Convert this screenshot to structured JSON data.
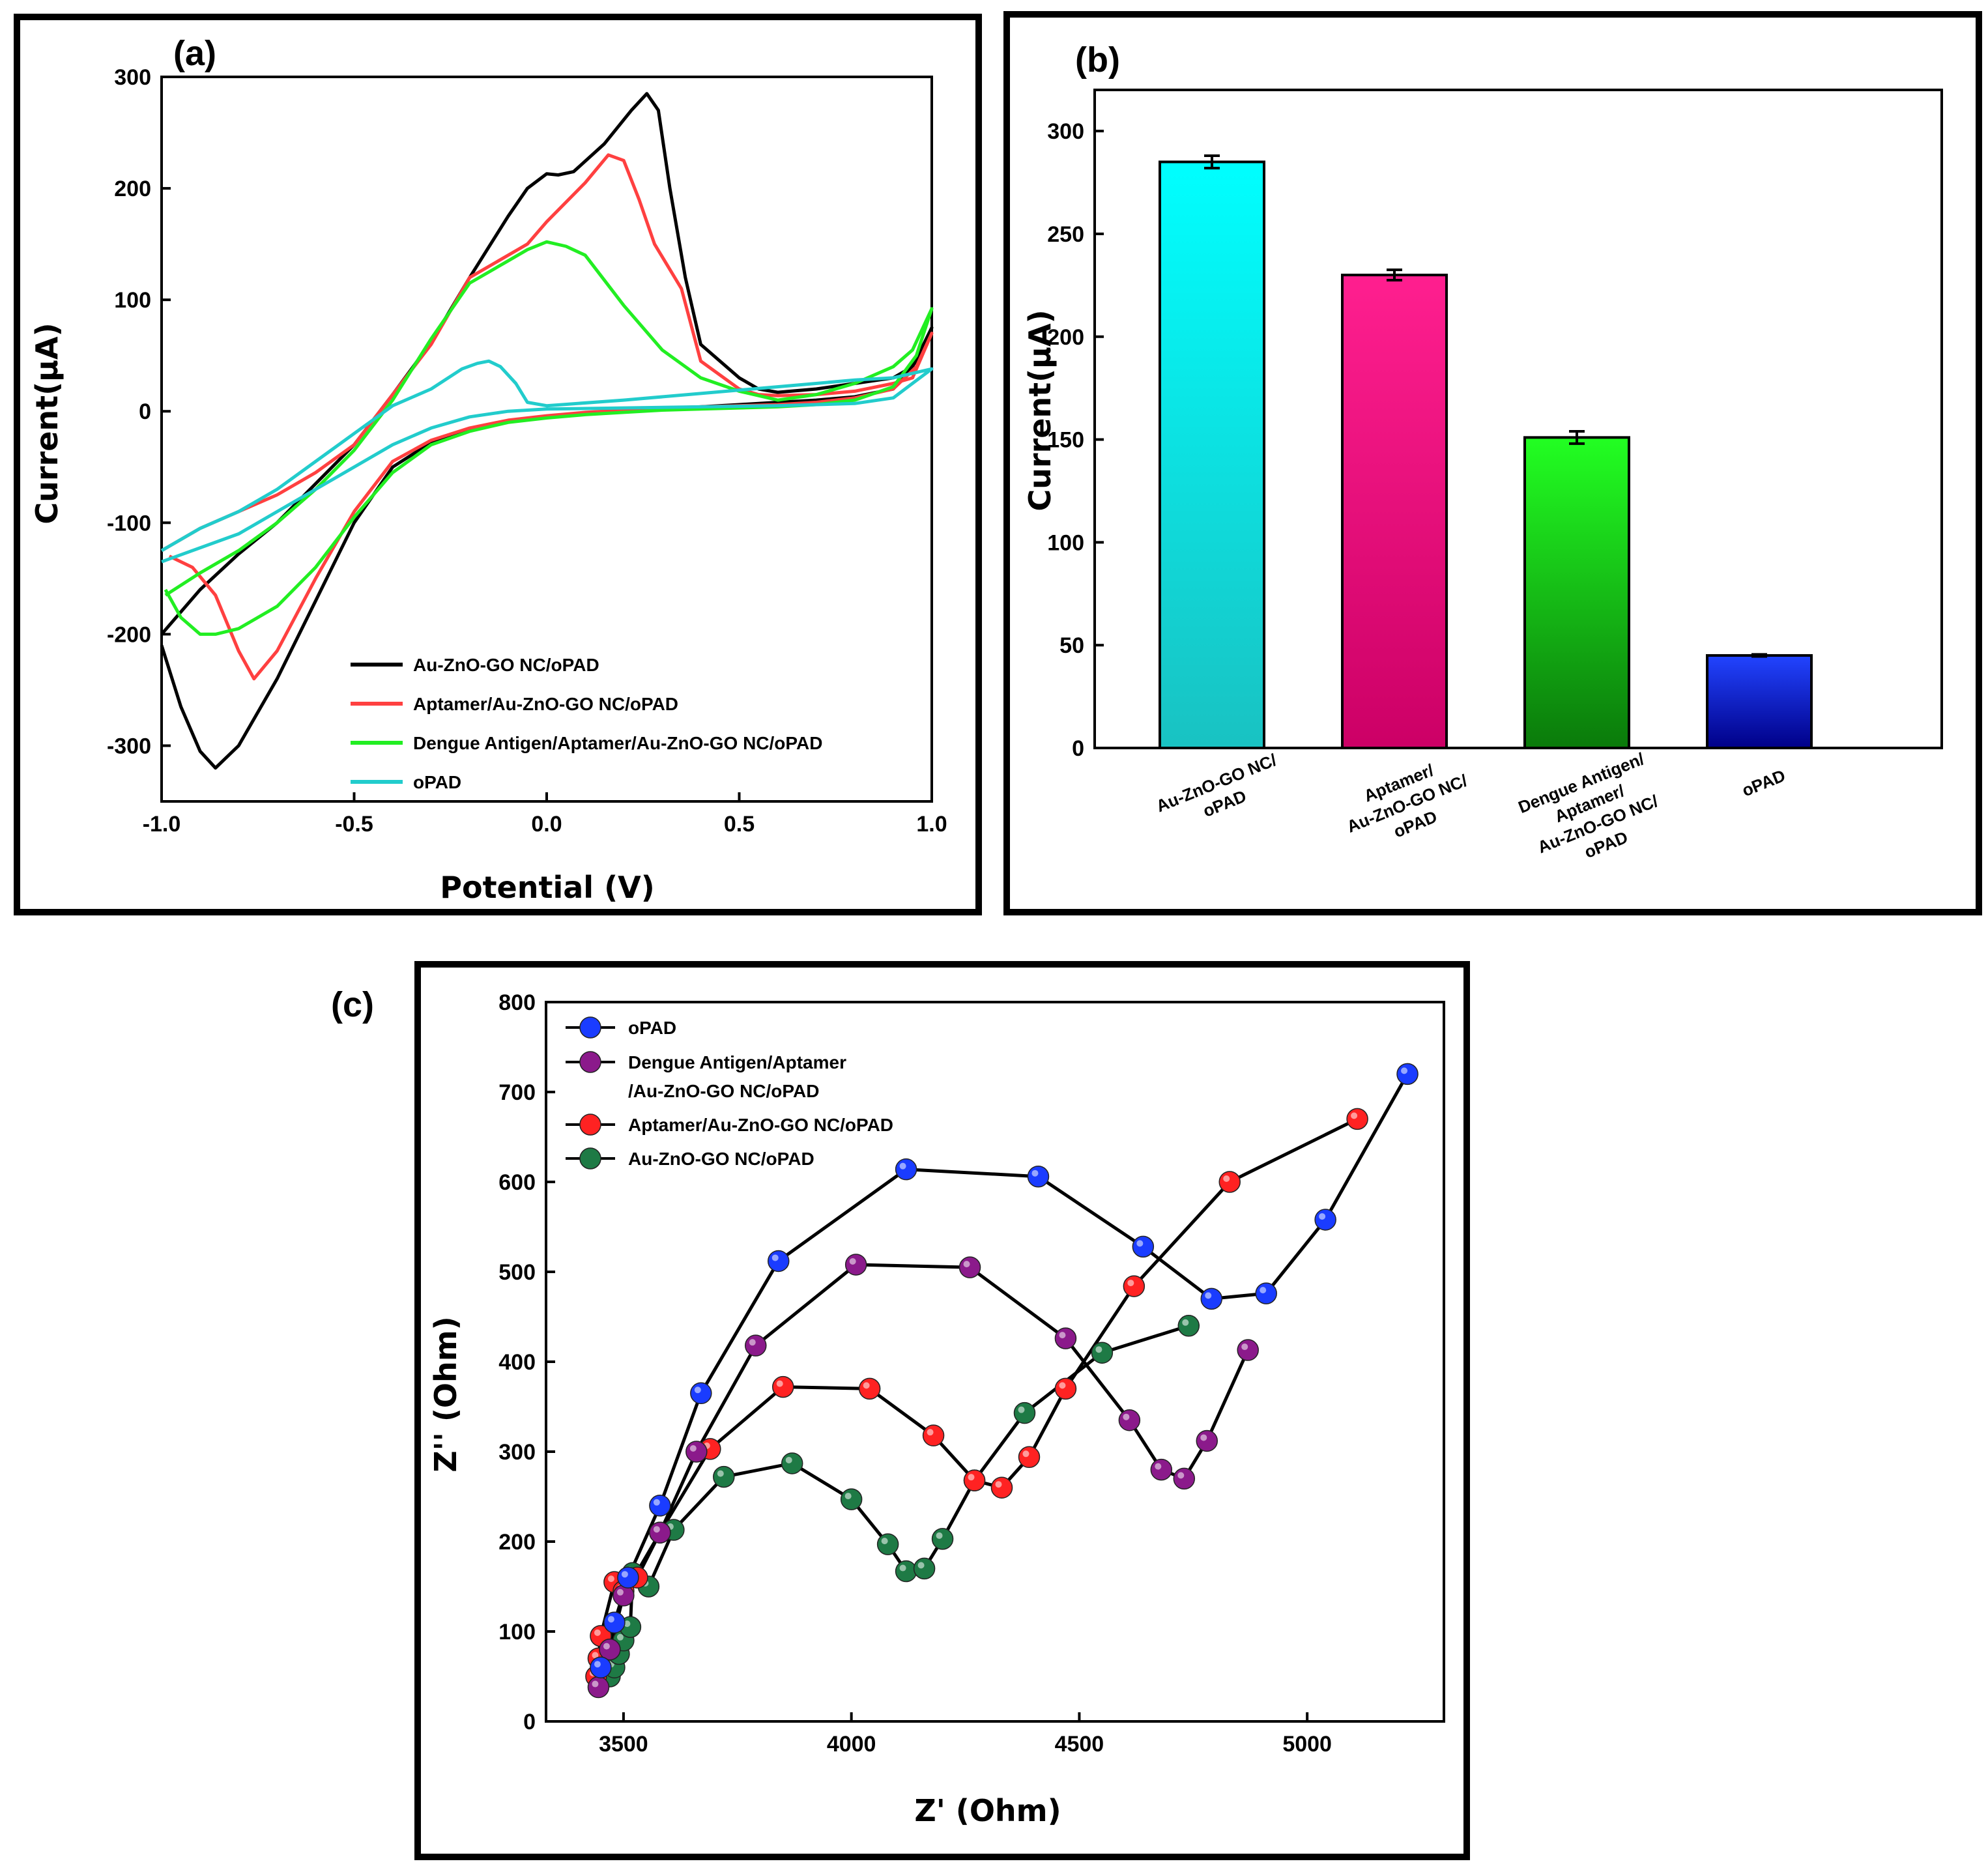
{
  "colors": {
    "black": "#000000",
    "red": "#ff4040",
    "green": "#22ee22",
    "cyan": "#22cccc",
    "bar_cyan_top": "#00ffff",
    "bar_cyan_bottom": "#19c2c2",
    "bar_magenta_top": "#ff1f8f",
    "bar_magenta_bottom": "#cc0066",
    "bar_green_top": "#22ff22",
    "bar_green_bottom": "#0a7a0a",
    "bar_blue_top": "#2244ff",
    "bar_blue_bottom": "#000088",
    "dot_blue": "#1a3cff",
    "dot_purple": "#8b1a8b",
    "dot_red": "#ff2222",
    "dot_green": "#1e7a45"
  },
  "chart_data": [
    {
      "panel": "(a)",
      "type": "line",
      "xlabel": "Potential (V)",
      "ylabel": "Current(μA)",
      "xlim": [
        -1.0,
        1.0
      ],
      "ylim": [
        -350,
        300
      ],
      "xticks": [
        "-1.0",
        "-0.5",
        "0.0",
        "0.5",
        "1.0"
      ],
      "xtick_values": [
        -1.0,
        -0.5,
        0.0,
        0.5,
        1.0
      ],
      "yticks": [
        "-300",
        "-200",
        "-100",
        "0",
        "100",
        "200",
        "300"
      ],
      "ytick_values": [
        -300,
        -200,
        -100,
        0,
        100,
        200,
        300
      ],
      "legend_position": "bottom-center",
      "series": [
        {
          "name": "Au-ZnO-GO NC/oPAD",
          "color_key": "black",
          "x": [
            -1.0,
            -0.95,
            -0.9,
            -0.86,
            -0.8,
            -0.7,
            -0.6,
            -0.5,
            -0.4,
            -0.3,
            -0.2,
            -0.1,
            0.0,
            0.1,
            0.2,
            0.3,
            0.4,
            0.5,
            0.6,
            0.7,
            0.8,
            0.9,
            0.96,
            1.0,
            0.95,
            0.9,
            0.8,
            0.7,
            0.6,
            0.55,
            0.5,
            0.4,
            0.36,
            0.32,
            0.29,
            0.26,
            0.22,
            0.15,
            0.07,
            0.03,
            0.0,
            -0.05,
            -0.1,
            -0.2,
            -0.3,
            -0.4,
            -0.5,
            -0.6,
            -0.7,
            -0.8,
            -0.9,
            -1.0
          ],
          "y": [
            -210,
            -265,
            -305,
            -320,
            -300,
            -240,
            -170,
            -100,
            -50,
            -28,
            -16,
            -9,
            -5,
            -2,
            0,
            2,
            4,
            6,
            8,
            10,
            13,
            20,
            45,
            75,
            40,
            30,
            25,
            20,
            17,
            20,
            30,
            60,
            120,
            200,
            270,
            285,
            270,
            240,
            215,
            212,
            213,
            200,
            175,
            120,
            62,
            15,
            -30,
            -65,
            -100,
            -128,
            -160,
            -200
          ]
        },
        {
          "name": "Aptamer/Au-ZnO-GO NC/oPAD",
          "color_key": "red",
          "x": [
            -0.98,
            -0.92,
            -0.86,
            -0.8,
            -0.76,
            -0.7,
            -0.6,
            -0.5,
            -0.4,
            -0.3,
            -0.2,
            -0.1,
            0.0,
            0.1,
            0.2,
            0.3,
            0.4,
            0.5,
            0.6,
            0.7,
            0.8,
            0.9,
            0.96,
            1.0,
            0.95,
            0.9,
            0.8,
            0.7,
            0.6,
            0.55,
            0.5,
            0.4,
            0.35,
            0.28,
            0.24,
            0.2,
            0.16,
            0.1,
            0.0,
            -0.05,
            -0.1,
            -0.2,
            -0.3,
            -0.4,
            -0.5,
            -0.6,
            -0.7,
            -0.8,
            -0.9,
            -1.0
          ],
          "y": [
            -130,
            -140,
            -165,
            -215,
            -240,
            -215,
            -150,
            -90,
            -45,
            -26,
            -15,
            -8,
            -4,
            -1,
            1,
            3,
            4,
            5,
            6,
            8,
            12,
            20,
            40,
            70,
            30,
            25,
            18,
            15,
            14,
            15,
            20,
            45,
            110,
            150,
            190,
            225,
            230,
            205,
            170,
            150,
            140,
            120,
            60,
            15,
            -30,
            -55,
            -75,
            -90,
            -105,
            -125
          ]
        },
        {
          "name": "Dengue Antigen/Aptamer/Au-ZnO-GO NC/oPAD",
          "color_key": "green",
          "x": [
            -0.99,
            -0.95,
            -0.9,
            -0.86,
            -0.8,
            -0.7,
            -0.6,
            -0.5,
            -0.4,
            -0.3,
            -0.2,
            -0.1,
            0.0,
            0.1,
            0.2,
            0.3,
            0.4,
            0.5,
            0.6,
            0.7,
            0.8,
            0.9,
            0.96,
            1.0,
            0.95,
            0.9,
            0.8,
            0.7,
            0.6,
            0.5,
            0.4,
            0.3,
            0.2,
            0.1,
            0.05,
            0.0,
            -0.05,
            -0.1,
            -0.2,
            -0.3,
            -0.4,
            -0.5,
            -0.6,
            -0.7,
            -0.8,
            -0.9,
            -0.99
          ],
          "y": [
            -160,
            -185,
            -200,
            -200,
            -195,
            -175,
            -140,
            -95,
            -55,
            -30,
            -18,
            -10,
            -6,
            -3,
            -1,
            1,
            2,
            3,
            4,
            6,
            10,
            22,
            50,
            92,
            55,
            40,
            25,
            15,
            10,
            18,
            30,
            55,
            95,
            140,
            148,
            152,
            145,
            135,
            115,
            65,
            10,
            -35,
            -70,
            -100,
            -125,
            -145,
            -165
          ]
        },
        {
          "name": "oPAD",
          "color_key": "cyan",
          "x": [
            -1.0,
            -0.8,
            -0.6,
            -0.4,
            -0.3,
            -0.2,
            -0.1,
            0.0,
            0.2,
            0.4,
            0.6,
            0.8,
            0.9,
            1.0,
            0.9,
            0.8,
            0.6,
            0.4,
            0.2,
            0.0,
            -0.05,
            -0.08,
            -0.12,
            -0.15,
            -0.18,
            -0.22,
            -0.3,
            -0.4,
            -0.5,
            -0.6,
            -0.7,
            -0.8,
            -0.9,
            -1.0
          ],
          "y": [
            -135,
            -110,
            -70,
            -30,
            -15,
            -5,
            0,
            2,
            3,
            4,
            5,
            7,
            12,
            38,
            30,
            28,
            22,
            16,
            10,
            5,
            8,
            25,
            40,
            45,
            43,
            38,
            20,
            5,
            -20,
            -45,
            -70,
            -90,
            -105,
            -125
          ]
        }
      ]
    },
    {
      "panel": "(b)",
      "type": "bar",
      "ylabel": "Current(μA)",
      "ylim": [
        0,
        320
      ],
      "yticks": [
        "0",
        "50",
        "100",
        "150",
        "200",
        "250",
        "300"
      ],
      "ytick_values": [
        0,
        50,
        100,
        150,
        200,
        250,
        300
      ],
      "categories": [
        [
          "Au-ZnO-GO NC/",
          "oPAD"
        ],
        [
          "Aptamer/",
          "Au-ZnO-GO NC/",
          "oPAD"
        ],
        [
          "Dengue Antigen/",
          "Aptamer/",
          "Au-ZnO-GO NC/",
          "oPAD"
        ],
        [
          "oPAD"
        ]
      ],
      "values": [
        285,
        230,
        151,
        45
      ],
      "errors": [
        3,
        2.5,
        3,
        0.5
      ],
      "color_keys": [
        [
          "bar_cyan_top",
          "bar_cyan_bottom"
        ],
        [
          "bar_magenta_top",
          "bar_magenta_bottom"
        ],
        [
          "bar_green_top",
          "bar_green_bottom"
        ],
        [
          "bar_blue_top",
          "bar_blue_bottom"
        ]
      ]
    },
    {
      "panel": "(c)",
      "type": "scatter",
      "xlabel": "Z' (Ohm)",
      "ylabel": "Z'' (Ohm)",
      "xlim": [
        3330,
        5300
      ],
      "ylim": [
        0,
        800
      ],
      "xticks": [
        "3500",
        "4000",
        "4500",
        "5000"
      ],
      "xtick_values": [
        3500,
        4000,
        4500,
        5000
      ],
      "yticks": [
        "0",
        "100",
        "200",
        "300",
        "400",
        "500",
        "600",
        "700",
        "800"
      ],
      "ytick_values": [
        0,
        100,
        200,
        300,
        400,
        500,
        600,
        700,
        800
      ],
      "legend_position": "top-left",
      "series": [
        {
          "name": "oPAD",
          "color_key": "dot_blue",
          "x": [
            3450,
            3480,
            3510,
            3580,
            3670,
            3840,
            4120,
            4410,
            4640,
            4790,
            4910,
            5040,
            5220
          ],
          "y": [
            60,
            110,
            160,
            240,
            365,
            512,
            614,
            606,
            528,
            470,
            476,
            558,
            720
          ]
        },
        {
          "name": "Dengue Antigen/Aptamer\n/Au-ZnO-GO NC/oPAD",
          "color_key": "dot_purple",
          "x": [
            3445,
            3470,
            3500,
            3580,
            3660,
            3790,
            4010,
            4260,
            4470,
            4610,
            4680,
            4730,
            4780,
            4870
          ],
          "y": [
            38,
            80,
            140,
            210,
            300,
            418,
            508,
            505,
            426,
            335,
            280,
            270,
            312,
            413
          ]
        },
        {
          "name": "Aptamer/Au-ZnO-GO NC/oPAD",
          "color_key": "dot_red",
          "x": [
            3440,
            3445,
            3450,
            3480,
            3500,
            3530,
            3580,
            3690,
            3850,
            4040,
            4180,
            4270,
            4330,
            4390,
            4470,
            4620,
            4830,
            5110
          ],
          "y": [
            50,
            70,
            95,
            155,
            145,
            160,
            210,
            303,
            372,
            370,
            318,
            268,
            260,
            294,
            370,
            484,
            600,
            670
          ]
        },
        {
          "name": "Au-ZnO-GO NC/oPAD",
          "color_key": "dot_green",
          "x": [
            3470,
            3480,
            3490,
            3500,
            3515,
            3520,
            3555,
            3610,
            3720,
            3870,
            4000,
            4080,
            4120,
            4160,
            4200,
            4270,
            4380,
            4550,
            4740
          ],
          "y": [
            50,
            60,
            75,
            90,
            105,
            165,
            150,
            213,
            272,
            287,
            247,
            197,
            167,
            170,
            203,
            268,
            343,
            410,
            440
          ]
        }
      ]
    }
  ],
  "panel_labels": {
    "a": "(a)",
    "b": "(b)",
    "c": "(c)"
  }
}
